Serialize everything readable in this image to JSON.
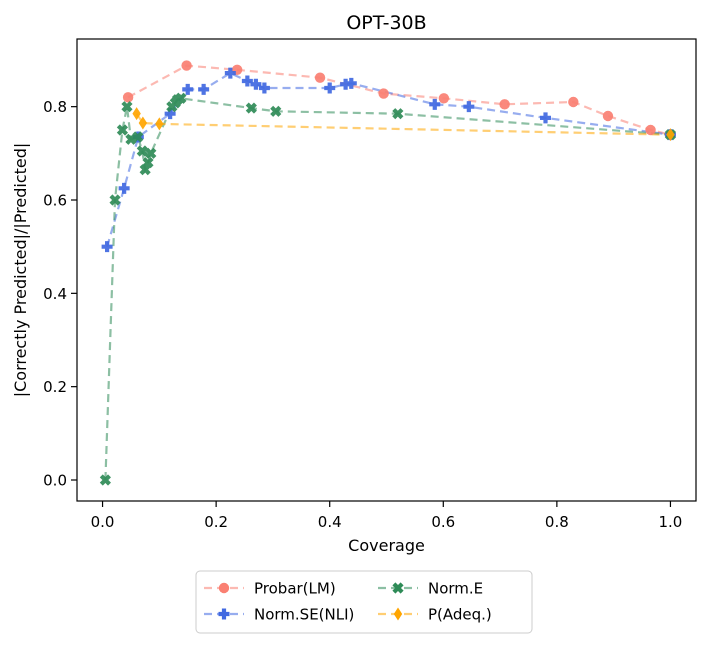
{
  "chart_data": {
    "type": "line",
    "title": "OPT-30B",
    "xlabel": "Coverage",
    "ylabel": "|Correctly Predicted|/|Predicted|",
    "xlim": [
      -0.045,
      1.045
    ],
    "ylim": [
      -0.045,
      0.945
    ],
    "xticks": [
      0.0,
      0.2,
      0.4,
      0.6,
      0.8,
      1.0
    ],
    "xtick_labels": [
      "0.0",
      "0.2",
      "0.4",
      "0.6",
      "0.8",
      "1.0"
    ],
    "yticks": [
      0.0,
      0.2,
      0.4,
      0.6,
      0.8
    ],
    "ytick_labels": [
      "0.0",
      "0.2",
      "0.4",
      "0.6",
      "0.8"
    ],
    "grid": false,
    "legend_position": "bottom-center",
    "series": [
      {
        "name": "Probar(LM)",
        "color": "#fa8072",
        "marker": "circle",
        "x": [
          0.045,
          0.148,
          0.237,
          0.383,
          0.495,
          0.601,
          0.708,
          0.829,
          0.89,
          0.965,
          1.0
        ],
        "y": [
          0.82,
          0.888,
          0.879,
          0.862,
          0.828,
          0.818,
          0.805,
          0.81,
          0.78,
          0.75,
          0.74
        ]
      },
      {
        "name": "Norm.SE(NLI)",
        "color": "#4169e1",
        "marker": "plus",
        "x": [
          0.008,
          0.038,
          0.063,
          0.119,
          0.15,
          0.178,
          0.225,
          0.255,
          0.27,
          0.285,
          0.4,
          0.428,
          0.438,
          0.585,
          0.645,
          0.78,
          1.0
        ],
        "y": [
          0.5,
          0.625,
          0.735,
          0.785,
          0.837,
          0.837,
          0.872,
          0.855,
          0.848,
          0.84,
          0.84,
          0.848,
          0.85,
          0.805,
          0.8,
          0.776,
          0.74
        ]
      },
      {
        "name": "Norm.E",
        "color": "#2e8b57",
        "marker": "x",
        "x": [
          0.005,
          0.022,
          0.035,
          0.043,
          0.05,
          0.062,
          0.07,
          0.075,
          0.08,
          0.085,
          0.122,
          0.128,
          0.132,
          0.138,
          0.262,
          0.305,
          0.52,
          1.0
        ],
        "y": [
          0.0,
          0.6,
          0.75,
          0.8,
          0.73,
          0.735,
          0.705,
          0.665,
          0.68,
          0.7,
          0.8,
          0.808,
          0.815,
          0.818,
          0.797,
          0.79,
          0.785,
          0.74
        ]
      },
      {
        "name": "P(Adeq.)",
        "color": "#ffa500",
        "marker": "diamond",
        "x": [
          0.06,
          0.071,
          0.1,
          1.0
        ],
        "y": [
          0.785,
          0.765,
          0.763,
          0.74
        ]
      }
    ]
  }
}
